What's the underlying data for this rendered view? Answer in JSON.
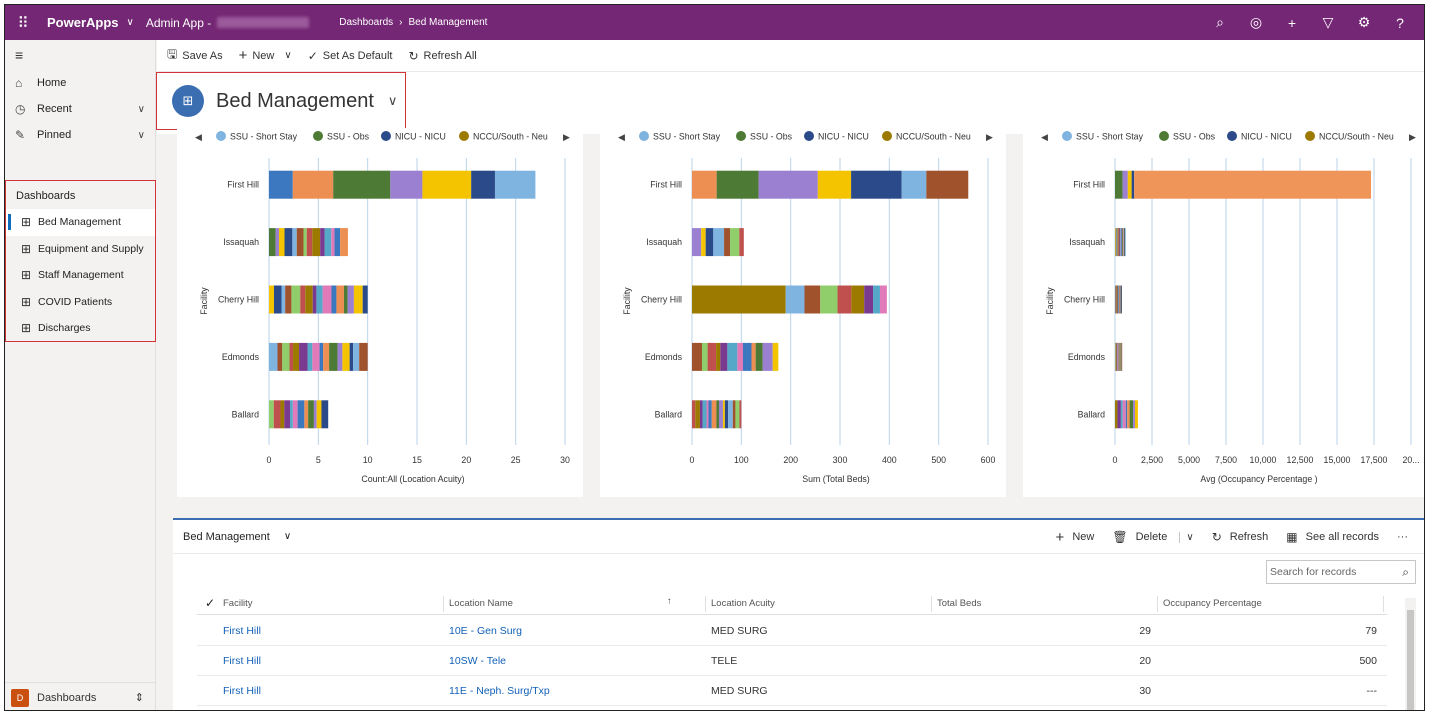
{
  "topbar": {
    "brand": "PowerApps",
    "app_name": "Admin App -",
    "breadcrumb": [
      "Dashboards",
      "Bed Management"
    ],
    "icons": [
      "search-icon",
      "target-icon",
      "plus-icon",
      "filter-icon",
      "gear-icon",
      "help-icon"
    ]
  },
  "sidebar": {
    "nav": [
      {
        "label": "Home",
        "icon": "home-icon"
      },
      {
        "label": "Recent",
        "icon": "clock-icon"
      },
      {
        "label": "Pinned",
        "icon": "pin-icon"
      }
    ],
    "section_title": "Dashboards",
    "dashboards": [
      "Bed Management",
      "Equipment and Supply",
      "Staff Management",
      "COVID Patients",
      "Discharges"
    ],
    "area_badge": "D",
    "area_label": "Dashboards"
  },
  "command_bar": {
    "save_as": "Save As",
    "new": "New",
    "set_default": "Set As Default",
    "refresh_all": "Refresh All"
  },
  "dashboard_title": "Bed Management",
  "colors": {
    "topbar": "#742774",
    "accent": "#3b6eb1",
    "highlight_box": "#d13438",
    "link": "#1160b7"
  },
  "chart_data": [
    {
      "type": "bar",
      "orientation": "horizontal",
      "stacked": true,
      "legend": [
        "SSU - Short Stay",
        "SSU - Obs",
        "NICU - NICU",
        "NCCU/South - Neu"
      ],
      "legend_colors": [
        "#7fb3e0",
        "#4d7a35",
        "#2a4a8a",
        "#9c7a00"
      ],
      "categories": [
        "First Hill",
        "Issaquah",
        "Cherry Hill",
        "Edmonds",
        "Ballard"
      ],
      "totals": [
        27,
        8,
        10,
        10,
        6
      ],
      "xlabel": "Count:All (Location Acuity)",
      "ylabel": "Facility",
      "xticks": [
        "0",
        "5",
        "10",
        "15",
        "20",
        "25",
        "30"
      ],
      "xlim": [
        0,
        30
      ]
    },
    {
      "type": "bar",
      "orientation": "horizontal",
      "stacked": true,
      "legend": [
        "SSU - Short Stay",
        "SSU - Obs",
        "NICU - NICU",
        "NCCU/South - Neu"
      ],
      "legend_colors": [
        "#7fb3e0",
        "#4d7a35",
        "#2a4a8a",
        "#9c7a00"
      ],
      "categories": [
        "First Hill",
        "Issaquah",
        "Cherry Hill",
        "Edmonds",
        "Ballard"
      ],
      "totals": [
        560,
        105,
        395,
        175,
        100
      ],
      "xlabel": "Sum (Total Beds)",
      "ylabel": "Facility",
      "xticks": [
        "0",
        "100",
        "200",
        "300",
        "400",
        "500",
        "600"
      ],
      "xlim": [
        0,
        600
      ]
    },
    {
      "type": "bar",
      "orientation": "horizontal",
      "stacked": true,
      "legend": [
        "SSU - Short Stay",
        "SSU - Obs",
        "NICU - NICU",
        "NCCU/South - Neu"
      ],
      "legend_colors": [
        "#7fb3e0",
        "#4d7a35",
        "#2a4a8a",
        "#9c7a00"
      ],
      "categories": [
        "First Hill",
        "Issaquah",
        "Cherry Hill",
        "Edmonds",
        "Ballard"
      ],
      "totals": [
        17300,
        700,
        450,
        450,
        1550
      ],
      "xlabel": "Avg (Occupancy Percentage )",
      "ylabel": "Facility",
      "xticks": [
        "0",
        "2,500",
        "5,000",
        "7,500",
        "10,000",
        "12,500",
        "15,000",
        "17,500",
        "20..."
      ],
      "xlim": [
        0,
        20000
      ]
    }
  ],
  "grid": {
    "title": "Bed Management",
    "commands": {
      "new": "New",
      "delete": "Delete",
      "refresh": "Refresh",
      "see_all": "See all records",
      "more": "···"
    },
    "search_placeholder": "Search for records",
    "columns": [
      "Facility",
      "Location Name",
      "Location Acuity",
      "Total Beds",
      "Occupancy Percentage"
    ],
    "rows": [
      {
        "facility": "First Hill",
        "location": "10E - Gen Surg",
        "acuity": "MED SURG",
        "beds": "29",
        "occupancy": "79"
      },
      {
        "facility": "First Hill",
        "location": "10SW - Tele",
        "acuity": "TELE",
        "beds": "20",
        "occupancy": "500"
      },
      {
        "facility": "First Hill",
        "location": "11E - Neph. Surg/Txp",
        "acuity": "MED SURG",
        "beds": "30",
        "occupancy": "---"
      }
    ]
  }
}
